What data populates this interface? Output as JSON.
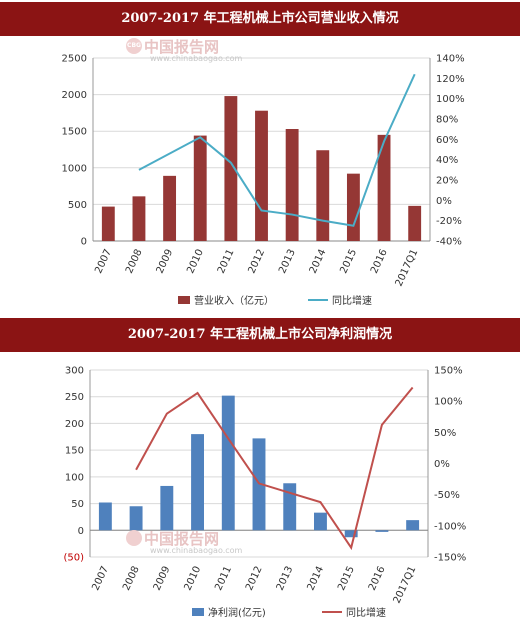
{
  "header1": {
    "title": "2007-2017 年工程机械上市公司营业收入情况"
  },
  "header2": {
    "title": "2007-2017 年工程机械上市公司净利润情况"
  },
  "watermark": {
    "cn": "中国报告网",
    "url": "www.chinabaogao.com",
    "logo": "CBG"
  },
  "colors": {
    "banner": "#8b1414",
    "bar1": "#953735",
    "line1": "#4bacc6",
    "bar2": "#4f81bd",
    "line2": "#c0504d"
  },
  "chart_data": [
    {
      "type": "bar",
      "categories": [
        "2007",
        "2008",
        "2009",
        "2010",
        "2011",
        "2012",
        "2013",
        "2014",
        "2015",
        "2016",
        "2017Q1"
      ],
      "series": [
        {
          "name": "营业收入（亿元）",
          "type": "bar",
          "axis": "left",
          "values": [
            470,
            610,
            890,
            1440,
            1980,
            1780,
            1530,
            1240,
            920,
            1450,
            480
          ]
        },
        {
          "name": "同比增速",
          "type": "line",
          "axis": "right",
          "values": [
            null,
            30,
            null,
            62,
            37,
            -10,
            -14,
            -20,
            -25,
            58,
            124
          ]
        }
      ],
      "ylim": [
        0,
        2500
      ],
      "yticks": [
        "0",
        "500",
        "1000",
        "1500",
        "2000",
        "2500"
      ],
      "y2lim": [
        -40,
        140
      ],
      "y2ticks": [
        "-40%",
        "-20%",
        "0%",
        "20%",
        "40%",
        "60%",
        "80%",
        "100%",
        "120%",
        "140%"
      ],
      "legend": "bottom"
    },
    {
      "type": "bar",
      "categories": [
        "2007",
        "2008",
        "2009",
        "2010",
        "2011",
        "2012",
        "2013",
        "2014",
        "2015",
        "2016",
        "2017Q1"
      ],
      "series": [
        {
          "name": "净利润(亿元)",
          "type": "bar",
          "axis": "left",
          "values": [
            52,
            45,
            83,
            180,
            252,
            172,
            88,
            33,
            -13,
            -3,
            19
          ]
        },
        {
          "name": "同比增速",
          "type": "line",
          "axis": "right",
          "values": [
            null,
            -10,
            80,
            113,
            40,
            -32,
            -47,
            -62,
            -135,
            62,
            122
          ]
        }
      ],
      "ylim": [
        -50,
        300
      ],
      "yticks": [
        "(50)",
        "0",
        "50",
        "100",
        "150",
        "200",
        "250",
        "300"
      ],
      "y2lim": [
        -150,
        150
      ],
      "y2ticks": [
        "-150%",
        "-100%",
        "-50%",
        "0%",
        "50%",
        "100%",
        "150%"
      ],
      "legend": "bottom"
    }
  ]
}
